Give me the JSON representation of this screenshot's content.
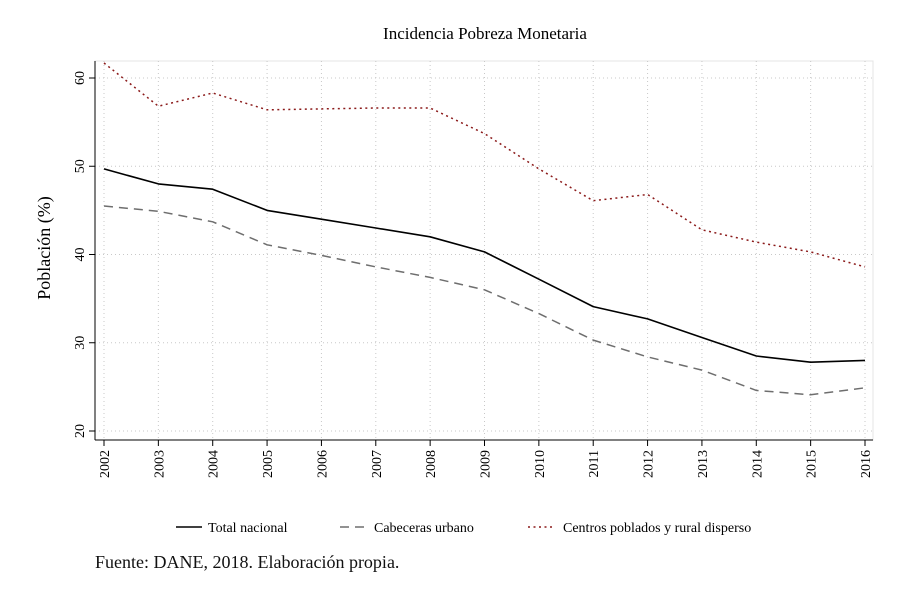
{
  "chart_data": {
    "type": "line",
    "title": "Incidencia Pobreza Monetaria",
    "xlabel": "",
    "ylabel": "Población (%)",
    "x": [
      2002,
      2003,
      2004,
      2005,
      2006,
      2007,
      2008,
      2009,
      2010,
      2011,
      2012,
      2013,
      2014,
      2015,
      2016
    ],
    "yticks": [
      20,
      30,
      40,
      50,
      60
    ],
    "ylim": [
      20,
      62
    ],
    "grid": true,
    "legend_position": "bottom",
    "series": [
      {
        "name": "Total nacional",
        "color": "#000000",
        "dash": "solid",
        "values": [
          49.7,
          48.0,
          47.4,
          45.0,
          44.0,
          43.0,
          42.0,
          40.3,
          37.2,
          34.1,
          32.7,
          30.6,
          28.5,
          27.8,
          28.0
        ]
      },
      {
        "name": "Cabeceras urbano",
        "color": "#6e6e6e",
        "dash": "dashed",
        "values": [
          45.5,
          44.9,
          43.7,
          41.1,
          39.9,
          38.6,
          37.4,
          36.0,
          33.3,
          30.3,
          28.4,
          26.9,
          24.6,
          24.1,
          24.9
        ]
      },
      {
        "name": "Centros poblados y rural disperso",
        "color": "#8b1a1a",
        "dash": "dotted",
        "values": [
          61.7,
          56.8,
          58.3,
          56.4,
          56.5,
          56.6,
          56.6,
          53.7,
          49.7,
          46.1,
          46.8,
          42.8,
          41.4,
          40.3,
          38.6
        ]
      }
    ]
  },
  "source": "Fuente: DANE, 2018. Elaboración propia."
}
